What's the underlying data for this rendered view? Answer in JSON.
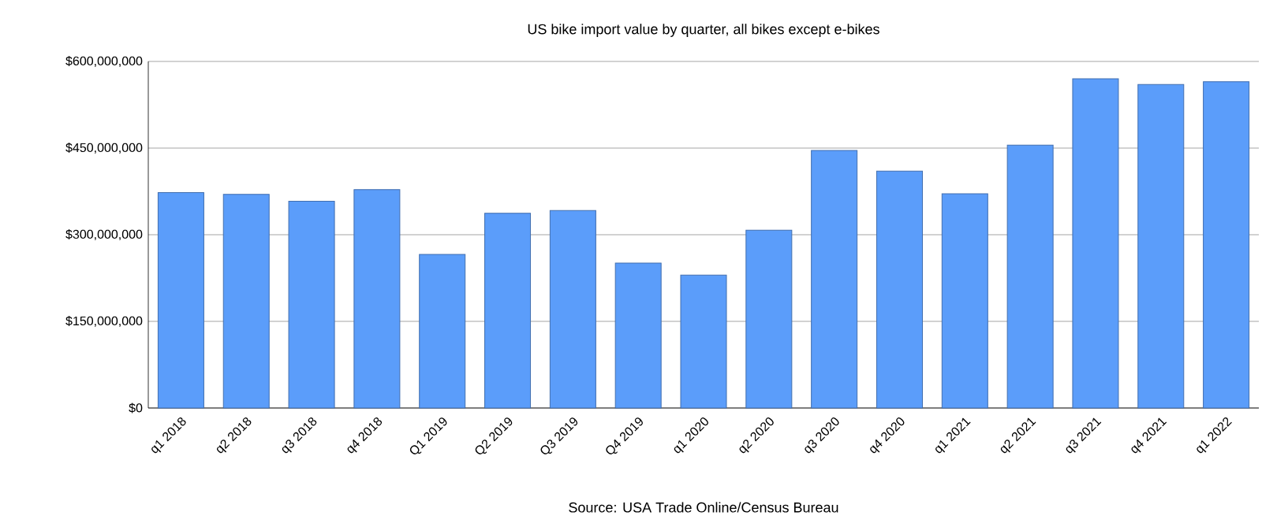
{
  "chart_data": {
    "type": "bar",
    "title": "US bike import value by quarter, all bikes except e-bikes",
    "categories": [
      "q1 2018",
      "q2 2018",
      "q3 2018",
      "q4 2018",
      "Q1 2019",
      "Q2 2019",
      "Q3 2019",
      "Q4 2019",
      "q1 2020",
      "q2 2020",
      "q3 2020",
      "q4 2020",
      "q1 2021",
      "q2 2021",
      "q3 2021",
      "q4 2021",
      "q1 2022"
    ],
    "values": [
      373000000,
      370000000,
      358000000,
      378000000,
      266000000,
      337000000,
      342000000,
      251000000,
      230000000,
      308000000,
      446000000,
      410000000,
      371000000,
      455000000,
      570000000,
      560000000,
      565000000
    ],
    "color": "#5b9dfa",
    "ylim": [
      0,
      600000000
    ],
    "yticks": [
      {
        "value": 0,
        "label": "$0"
      },
      {
        "value": 150000000,
        "label": "$150,000,000"
      },
      {
        "value": 300000000,
        "label": "$300,000,000"
      },
      {
        "value": 450000000,
        "label": "$450,000,000"
      },
      {
        "value": 600000000,
        "label": "$600,000,000"
      }
    ],
    "grid": "y",
    "annotations": [
      "Source: USA Trade Online/Census Bureau"
    ]
  }
}
